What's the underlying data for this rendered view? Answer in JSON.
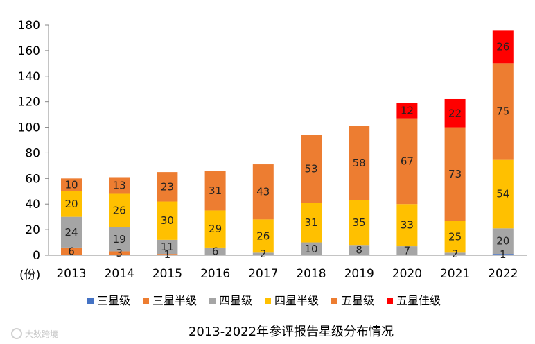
{
  "chart_data": {
    "type": "bar",
    "stacked": true,
    "title": "2013-2022年参评报告星级分布情况",
    "ylabel": "(份)",
    "ylim": [
      0,
      180
    ],
    "yticks": [
      0,
      20,
      40,
      60,
      80,
      100,
      120,
      140,
      160,
      180
    ],
    "categories": [
      "2013",
      "2014",
      "2015",
      "2016",
      "2017",
      "2018",
      "2019",
      "2020",
      "2021",
      "2022"
    ],
    "series": [
      {
        "name": "三星级",
        "color": "#4472C4",
        "values": [
          0,
          0,
          0,
          0,
          0,
          0,
          0,
          0,
          0,
          1
        ]
      },
      {
        "name": "三星半级",
        "color": "#ED7D31",
        "values": [
          6,
          3,
          1,
          0,
          0,
          0,
          0,
          0,
          0,
          0
        ]
      },
      {
        "name": "四星级",
        "color": "#A5A5A5",
        "values": [
          24,
          19,
          11,
          6,
          2,
          10,
          8,
          7,
          2,
          20
        ]
      },
      {
        "name": "四星半级",
        "color": "#FFC000",
        "values": [
          20,
          26,
          30,
          29,
          26,
          31,
          35,
          33,
          25,
          54
        ]
      },
      {
        "name": "五星级",
        "color": "#ED7D31",
        "values": [
          10,
          13,
          23,
          31,
          43,
          53,
          58,
          67,
          73,
          75
        ]
      },
      {
        "name": "五星佳级",
        "color": "#FF0000",
        "values": [
          0,
          0,
          0,
          0,
          0,
          0,
          0,
          12,
          22,
          26
        ]
      }
    ],
    "legend": "bottom",
    "grid": false
  },
  "watermark": "大数跨境"
}
